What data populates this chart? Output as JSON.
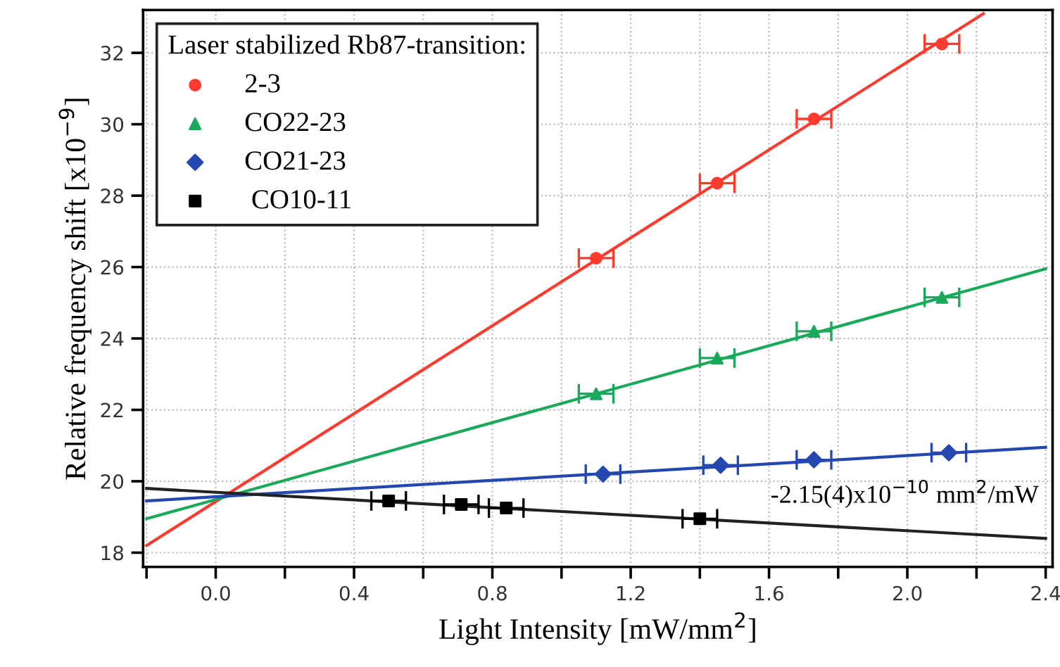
{
  "chart_data": {
    "type": "scatter",
    "xlabel": "Light Intensity [mW/mm$^{2}$]",
    "ylabel": "Relative frequency shift [x10$^{−9}$]",
    "legend_title": "Laser stabilized Rb87-transition:",
    "legend": "top left",
    "grid": true,
    "xlim": [
      -0.21,
      2.42
    ],
    "ylim": [
      17.6,
      33.2
    ],
    "xticks": [
      {
        "value": -0.2,
        "label": null
      },
      {
        "value": 0,
        "label": "0.0"
      },
      {
        "value": 0.2,
        "label": null
      },
      0.4,
      {
        "value": 0.6,
        "label": null
      },
      0.8,
      {
        "value": 1.0,
        "label": null
      },
      1.2,
      {
        "value": 1.4,
        "label": null
      },
      1.6,
      {
        "value": 1.8,
        "label": null
      },
      {
        "value": 2,
        "label": "2.0"
      },
      {
        "value": 2.2,
        "label": null
      },
      2.4
    ],
    "yticks": [
      18,
      20,
      22,
      24,
      26,
      28,
      30,
      32
    ],
    "series": [
      {
        "name": "2-3",
        "color": "#ff3b2f",
        "marker": "circle",
        "x": [
          1.1,
          1.45,
          1.73,
          2.1
        ],
        "values": [
          26.25,
          28.35,
          30.15,
          32.25
        ],
        "xerrors": [
          0.05,
          0.05,
          0.05,
          0.05
        ]
      },
      {
        "name": "CO22-23",
        "color": "#1aa85a",
        "marker": "triangle",
        "x": [
          1.1,
          1.45,
          1.73,
          2.1
        ],
        "values": [
          22.45,
          23.45,
          24.2,
          25.15
        ],
        "xerrors": [
          0.05,
          0.05,
          0.05,
          0.05
        ]
      },
      {
        "name": "CO21-23",
        "color": "#2448b0",
        "marker": "diamond",
        "x": [
          1.12,
          1.46,
          1.73,
          2.12
        ],
        "values": [
          20.2,
          20.45,
          20.6,
          20.8
        ],
        "xerrors": [
          0.05,
          0.05,
          0.05,
          0.05
        ]
      },
      {
        "name": " CO10-11",
        "color": "#000000",
        "marker": "square",
        "x": [
          0.5,
          0.71,
          0.84,
          1.4
        ],
        "values": [
          19.45,
          19.35,
          19.25,
          18.95
        ],
        "xerrors": [
          0.05,
          0.05,
          0.05,
          0.05
        ]
      },
      {
        "type": "line",
        "color": "#ff3b2f",
        "marker": "none",
        "x": [
          -0.2,
          2.22
        ],
        "values": [
          18.2,
          33.1
        ]
      },
      {
        "type": "line",
        "color": "#1aa85a",
        "marker": "none",
        "x": [
          -0.2,
          2.4
        ],
        "values": [
          18.95,
          25.95
        ]
      },
      {
        "type": "line",
        "color": "#2448b0",
        "marker": "none",
        "x": [
          -0.2,
          2.4
        ],
        "values": [
          19.45,
          20.95
        ]
      },
      {
        "type": "line",
        "color": "#222222",
        "marker": "none",
        "x": [
          -0.2,
          2.4
        ],
        "values": [
          19.8,
          18.4
        ]
      }
    ],
    "annotations": [
      "-2.15(4)x10$^{−10}$ mm$^{2}$/mW"
    ]
  }
}
